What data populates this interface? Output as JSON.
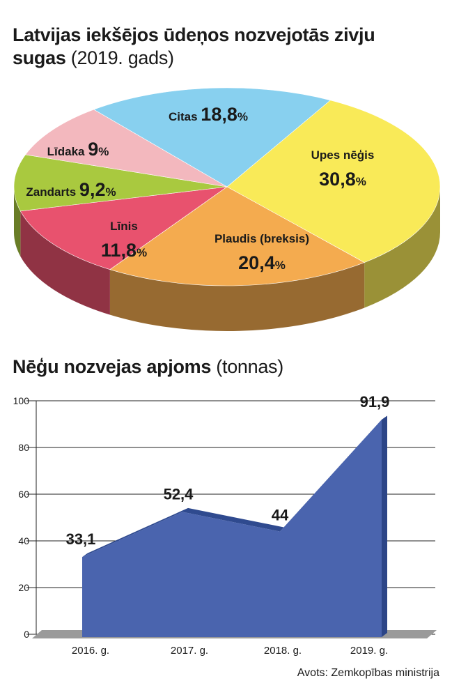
{
  "chart_data": [
    {
      "type": "pie",
      "title": "Latvijas iekšējos ūdeņos nozvejotās zivju sugas",
      "subtitle": "(2019. gads)",
      "slices": [
        {
          "name": "Upes nēģis",
          "value": 30.8,
          "label": "30,8",
          "color": "#f9ea58"
        },
        {
          "name": "Plaudis (breksis)",
          "value": 20.4,
          "label": "20,4",
          "color": "#f4ab4f"
        },
        {
          "name": "Līnis",
          "value": 11.8,
          "label": "11,8",
          "color": "#e8526e"
        },
        {
          "name": "Zandarts",
          "value": 9.2,
          "label": "9,2",
          "color": "#a9c93f"
        },
        {
          "name": "Līdaka",
          "value": 9,
          "label": "9",
          "color": "#f3b8be"
        },
        {
          "name": "Citas",
          "value": 18.8,
          "label": "18,8",
          "color": "#88d0ef"
        }
      ],
      "unit": "%"
    },
    {
      "type": "area",
      "title": "Nēģu nozvejas apjoms",
      "subtitle": "(tonnas)",
      "categories": [
        "2016. g.",
        "2017. g.",
        "2018. g.",
        "2019. g."
      ],
      "values": [
        33.1,
        52.4,
        44,
        91.9
      ],
      "value_labels": [
        "33,1",
        "52,4",
        "44",
        "91,9"
      ],
      "ylim": [
        0,
        100
      ],
      "yticks": [
        "0",
        "20",
        "40",
        "60",
        "80",
        "100"
      ],
      "grid": true,
      "color": "#4a64ae"
    }
  ],
  "source": "Avots: Zemkopības ministrija"
}
